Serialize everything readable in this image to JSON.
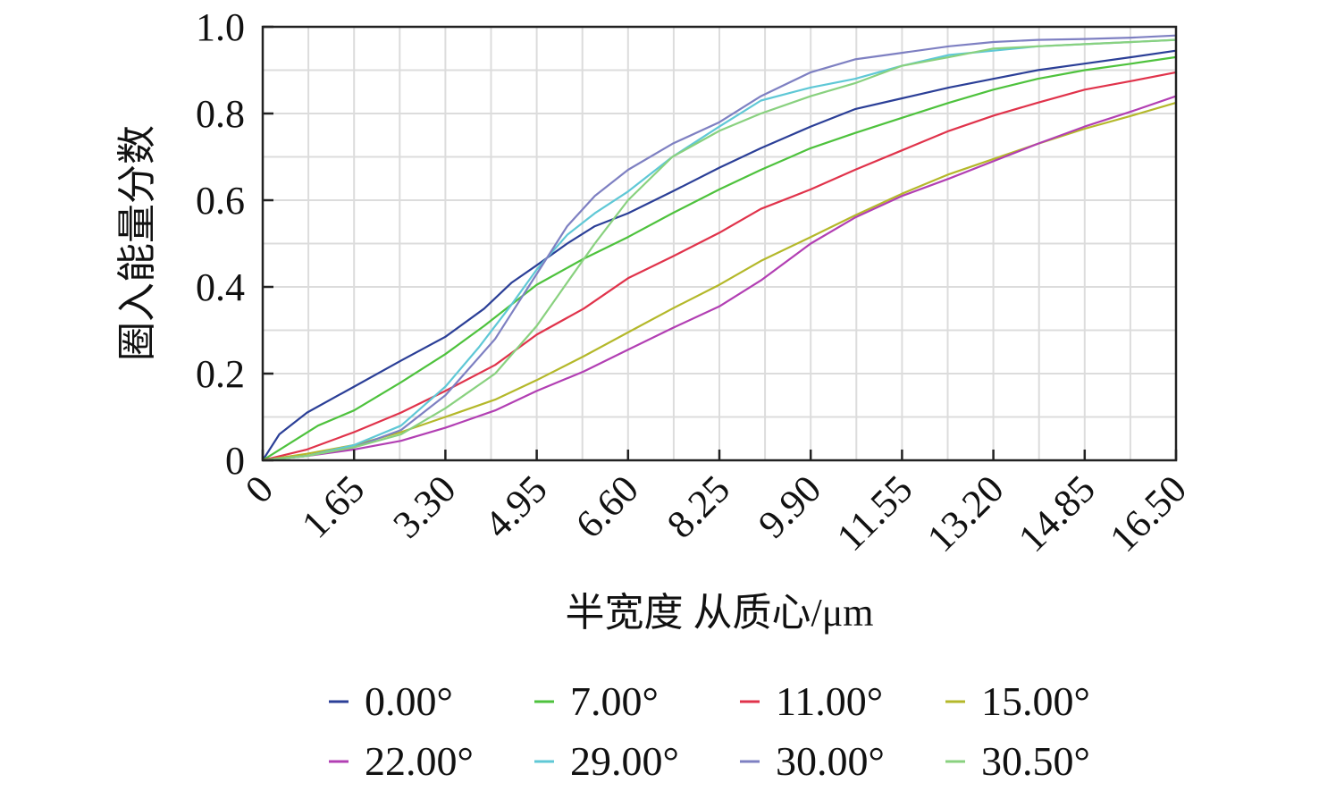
{
  "chart_data": {
    "type": "line",
    "title": "",
    "xlabel": "半宽度 从质心/μm",
    "ylabel": "圈入能量分数",
    "xlim": [
      0,
      16.5
    ],
    "ylim": [
      0,
      1.0
    ],
    "grid": true,
    "legend_position": "bottom",
    "x_ticks": [
      "0",
      "1.65",
      "3.30",
      "4.95",
      "6.60",
      "8.25",
      "9.90",
      "11.55",
      "13.20",
      "14.85",
      "16.50"
    ],
    "y_ticks": [
      "0",
      "0.2",
      "0.4",
      "0.6",
      "0.8",
      "1.0"
    ],
    "series": [
      {
        "name": "0.00°",
        "color": "#2b3f97",
        "x": [
          0,
          0.3,
          0.8,
          1.65,
          2.5,
          3.3,
          4.0,
          4.5,
          4.95,
          5.5,
          6.0,
          6.6,
          7.4,
          8.25,
          9.0,
          9.9,
          10.7,
          11.55,
          12.4,
          13.2,
          14.0,
          14.85,
          15.7,
          16.5
        ],
        "y": [
          0,
          0.06,
          0.11,
          0.17,
          0.23,
          0.285,
          0.35,
          0.41,
          0.45,
          0.5,
          0.54,
          0.57,
          0.62,
          0.675,
          0.72,
          0.77,
          0.81,
          0.835,
          0.86,
          0.88,
          0.9,
          0.915,
          0.93,
          0.945
        ]
      },
      {
        "name": "7.00°",
        "color": "#4ec23d",
        "x": [
          0,
          0.5,
          1.0,
          1.65,
          2.5,
          3.3,
          4.0,
          4.95,
          5.8,
          6.6,
          7.4,
          8.25,
          9.0,
          9.9,
          10.7,
          11.55,
          12.4,
          13.2,
          14.0,
          14.85,
          15.7,
          16.5
        ],
        "y": [
          0,
          0.04,
          0.08,
          0.115,
          0.18,
          0.245,
          0.31,
          0.405,
          0.465,
          0.515,
          0.57,
          0.625,
          0.67,
          0.72,
          0.755,
          0.79,
          0.825,
          0.855,
          0.88,
          0.9,
          0.915,
          0.93
        ]
      },
      {
        "name": "11.00°",
        "color": "#e0334b",
        "x": [
          0,
          0.8,
          1.65,
          2.5,
          3.3,
          4.2,
          4.95,
          5.8,
          6.6,
          7.4,
          8.25,
          9.0,
          9.9,
          10.7,
          11.55,
          12.4,
          13.2,
          14.0,
          14.85,
          15.7,
          16.5
        ],
        "y": [
          0,
          0.025,
          0.065,
          0.11,
          0.16,
          0.22,
          0.29,
          0.35,
          0.42,
          0.47,
          0.525,
          0.58,
          0.625,
          0.67,
          0.715,
          0.76,
          0.795,
          0.825,
          0.855,
          0.875,
          0.895
        ]
      },
      {
        "name": "15.00°",
        "color": "#b4b82a",
        "x": [
          0,
          0.8,
          1.65,
          2.5,
          3.3,
          4.2,
          4.95,
          5.8,
          6.6,
          7.4,
          8.25,
          9.0,
          9.9,
          10.7,
          11.55,
          12.4,
          13.2,
          14.0,
          14.85,
          15.7,
          16.5
        ],
        "y": [
          0,
          0.015,
          0.035,
          0.065,
          0.1,
          0.14,
          0.185,
          0.24,
          0.295,
          0.35,
          0.405,
          0.46,
          0.515,
          0.565,
          0.615,
          0.66,
          0.695,
          0.73,
          0.765,
          0.795,
          0.825
        ]
      },
      {
        "name": "22.00°",
        "color": "#b23fb3",
        "x": [
          0,
          0.8,
          1.65,
          2.5,
          3.3,
          4.2,
          4.95,
          5.8,
          6.6,
          7.4,
          8.25,
          9.0,
          9.9,
          10.7,
          11.55,
          12.4,
          13.2,
          14.0,
          14.85,
          15.7,
          16.5
        ],
        "y": [
          0,
          0.01,
          0.025,
          0.045,
          0.075,
          0.115,
          0.16,
          0.205,
          0.255,
          0.305,
          0.355,
          0.415,
          0.5,
          0.56,
          0.61,
          0.65,
          0.69,
          0.73,
          0.77,
          0.805,
          0.84
        ]
      },
      {
        "name": "29.00°",
        "color": "#5fc8d6",
        "x": [
          0,
          0.8,
          1.65,
          2.5,
          3.3,
          3.9,
          4.5,
          4.95,
          5.5,
          6.0,
          6.6,
          7.4,
          8.25,
          9.0,
          9.9,
          10.7,
          11.55,
          12.4,
          13.2,
          14.0,
          14.85,
          15.7,
          16.5
        ],
        "y": [
          0,
          0.01,
          0.035,
          0.08,
          0.17,
          0.26,
          0.36,
          0.44,
          0.52,
          0.57,
          0.62,
          0.7,
          0.77,
          0.83,
          0.86,
          0.88,
          0.91,
          0.935,
          0.945,
          0.955,
          0.96,
          0.965,
          0.97
        ]
      },
      {
        "name": "30.00°",
        "color": "#7e80c2",
        "x": [
          0,
          0.8,
          1.65,
          2.5,
          3.3,
          4.2,
          4.7,
          4.95,
          5.5,
          6.0,
          6.6,
          7.4,
          8.25,
          9.0,
          9.9,
          10.7,
          11.55,
          12.4,
          13.2,
          14.0,
          14.85,
          15.7,
          16.5
        ],
        "y": [
          0,
          0.01,
          0.03,
          0.07,
          0.15,
          0.28,
          0.38,
          0.43,
          0.54,
          0.61,
          0.67,
          0.73,
          0.78,
          0.84,
          0.895,
          0.925,
          0.94,
          0.955,
          0.965,
          0.97,
          0.972,
          0.975,
          0.98
        ]
      },
      {
        "name": "30.50°",
        "color": "#89d17f",
        "x": [
          0,
          0.8,
          1.65,
          2.5,
          3.3,
          4.2,
          4.95,
          5.5,
          6.0,
          6.6,
          7.4,
          8.25,
          9.0,
          9.9,
          10.7,
          11.55,
          12.4,
          13.2,
          14.0,
          14.85,
          15.7,
          16.5
        ],
        "y": [
          0,
          0.01,
          0.03,
          0.06,
          0.12,
          0.2,
          0.31,
          0.41,
          0.5,
          0.6,
          0.7,
          0.76,
          0.8,
          0.84,
          0.87,
          0.91,
          0.93,
          0.95,
          0.955,
          0.96,
          0.965,
          0.97
        ]
      }
    ]
  }
}
